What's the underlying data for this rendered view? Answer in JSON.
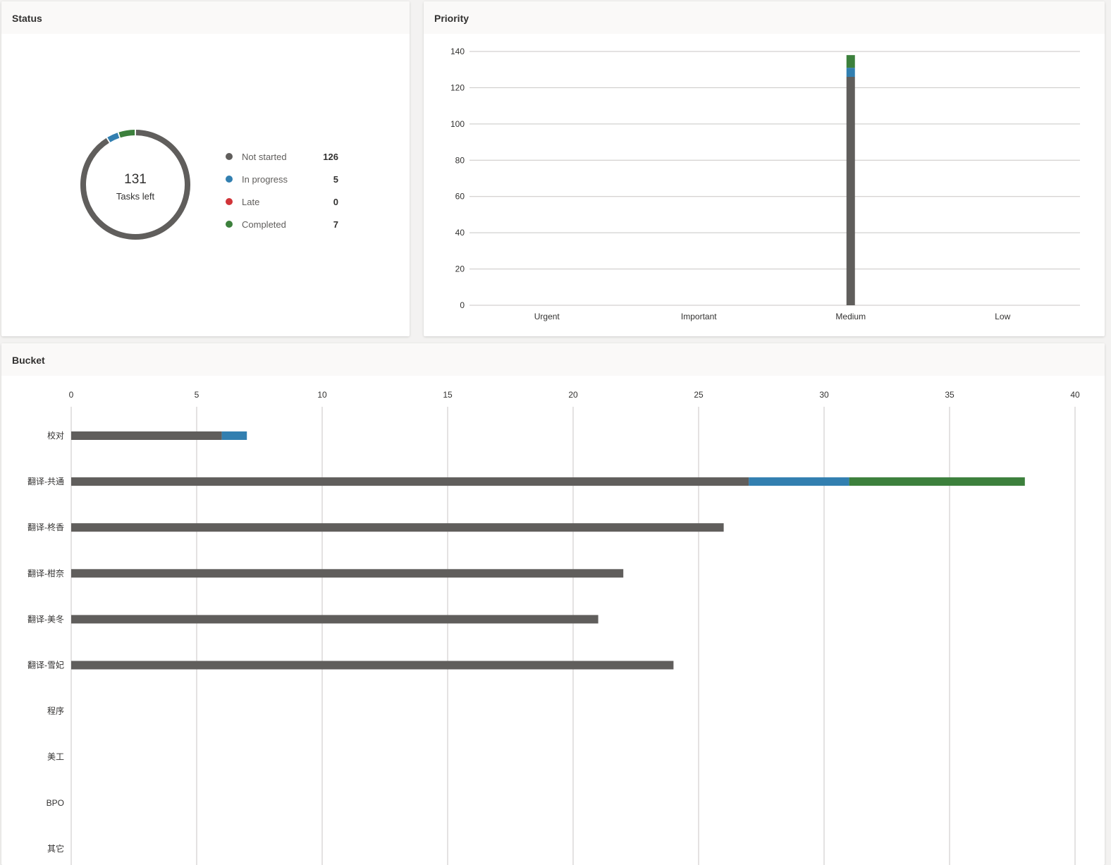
{
  "colors": {
    "not_started": "#605e5c",
    "in_progress": "#327fb0",
    "late": "#d13438",
    "completed": "#3c803c"
  },
  "status": {
    "title": "Status",
    "total": "131",
    "total_label": "Tasks left",
    "legend": [
      {
        "label": "Not started",
        "value": 126,
        "color": "#605e5c"
      },
      {
        "label": "In progress",
        "value": 5,
        "color": "#327fb0"
      },
      {
        "label": "Late",
        "value": 0,
        "color": "#d13438"
      },
      {
        "label": "Completed",
        "value": 7,
        "color": "#3c803c"
      }
    ]
  },
  "chart_data": [
    {
      "type": "pie",
      "title": "Status",
      "categories": [
        "Not started",
        "In progress",
        "Late",
        "Completed"
      ],
      "values": [
        126,
        5,
        0,
        7
      ]
    },
    {
      "type": "bar",
      "title": "Priority",
      "stacked": true,
      "categories": [
        "Urgent",
        "Important",
        "Medium",
        "Low"
      ],
      "ylim": [
        0,
        140
      ],
      "yticks": [
        0,
        20,
        40,
        60,
        80,
        100,
        120,
        140
      ],
      "grid": true,
      "series": [
        {
          "name": "Not started",
          "values": [
            0,
            0,
            126,
            0
          ]
        },
        {
          "name": "In progress",
          "values": [
            0,
            0,
            5,
            0
          ]
        },
        {
          "name": "Late",
          "values": [
            0,
            0,
            0,
            0
          ]
        },
        {
          "name": "Completed",
          "values": [
            0,
            0,
            7,
            0
          ]
        }
      ]
    },
    {
      "type": "bar",
      "orientation": "horizontal",
      "title": "Bucket",
      "stacked": true,
      "categories": [
        "校对",
        "翻译-共通",
        "翻译-柊香",
        "翻译-柑奈",
        "翻译-美冬",
        "翻译-雪妃",
        "程序",
        "美工",
        "BPO",
        "其它"
      ],
      "xlim": [
        0,
        40
      ],
      "xticks": [
        0,
        5,
        10,
        15,
        20,
        25,
        30,
        35,
        40
      ],
      "grid": true,
      "series": [
        {
          "name": "Not started",
          "values": [
            6,
            27,
            26,
            22,
            21,
            24,
            0,
            0,
            0,
            0
          ]
        },
        {
          "name": "In progress",
          "values": [
            1,
            4,
            0,
            0,
            0,
            0,
            0,
            0,
            0,
            0
          ]
        },
        {
          "name": "Late",
          "values": [
            0,
            0,
            0,
            0,
            0,
            0,
            0,
            0,
            0,
            0
          ]
        },
        {
          "name": "Completed",
          "values": [
            0,
            7,
            0,
            0,
            0,
            0,
            0,
            0,
            0,
            0
          ]
        }
      ]
    }
  ],
  "priority": {
    "title": "Priority"
  },
  "bucket": {
    "title": "Bucket"
  }
}
